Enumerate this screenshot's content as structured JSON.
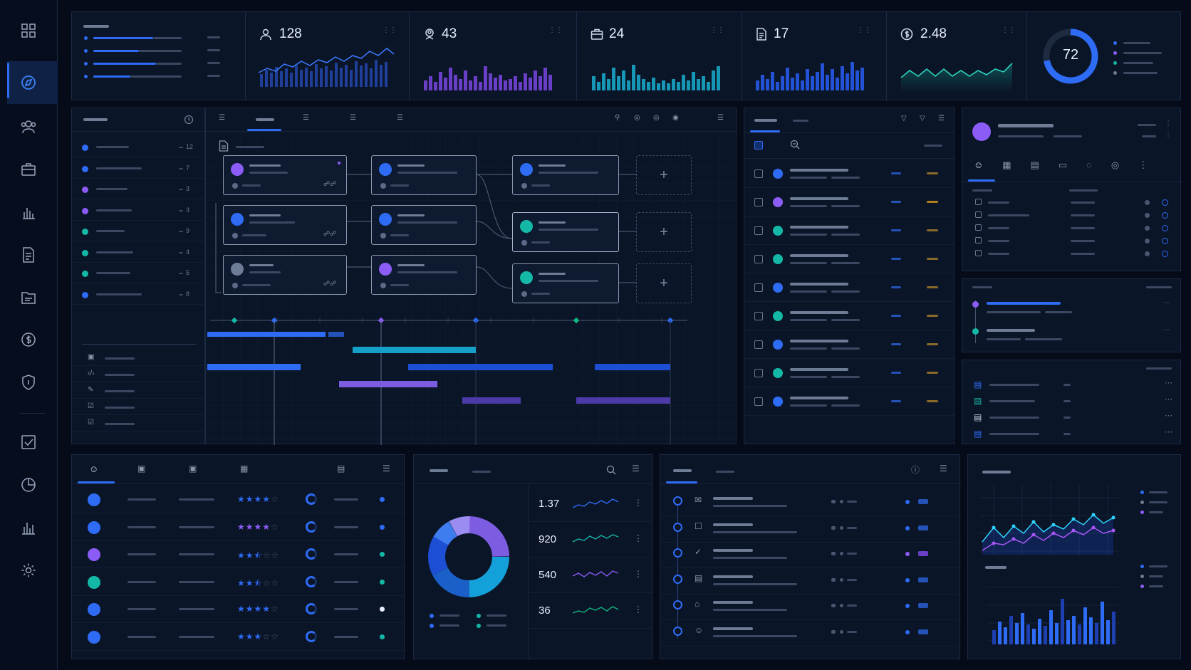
{
  "sidebar": {
    "icons": [
      "grid-icon",
      "compass-icon",
      "users-icon",
      "briefcase-icon",
      "bar-chart-icon",
      "document-icon",
      "folder-icon",
      "dollar-icon",
      "shield-icon",
      "checkbox-icon",
      "pie-chart-icon",
      "analytics-icon",
      "gear-icon"
    ],
    "active": "compass-icon"
  },
  "kpis": [
    {
      "icon": "user-icon",
      "value": "128"
    },
    {
      "icon": "user-badge-icon",
      "value": "43"
    },
    {
      "icon": "briefcase-icon",
      "value": "24"
    },
    {
      "icon": "document-icon",
      "value": "17"
    },
    {
      "icon": "dollar-icon",
      "value": "2.48"
    }
  ],
  "gauge": {
    "value": "72",
    "fraction": 0.72
  },
  "left_list": {
    "counts": [
      "12",
      "7",
      "3",
      "3",
      "9",
      "4",
      "5",
      "8"
    ],
    "dot_colors": [
      "#2e6cf6",
      "#2e6cf6",
      "#8b5cf6",
      "#8b5cf6",
      "#14b8a6",
      "#14b8a6",
      "#14b8a6",
      "#2e6cf6"
    ],
    "tools": [
      "briefcase-icon",
      "code-icon",
      "pen-icon",
      "checkbox-icon",
      "checkbox-icon"
    ]
  },
  "workflow": {
    "add_symbol": "+"
  },
  "mini_stats": [
    {
      "value": "1.37",
      "color": "#2e6cf6"
    },
    {
      "value": "920",
      "color": "#14b8a6"
    },
    {
      "value": "540",
      "color": "#8b5cf6"
    },
    {
      "value": "36",
      "color": "#10b981"
    }
  ],
  "ratings": [
    4,
    4,
    2.5,
    2.5,
    4,
    3
  ],
  "rating_status_colors": [
    "#2e6cf6",
    "#2e6cf6",
    "#14b8a6",
    "#14b8a6",
    "#e8eefb",
    "#14b8a6"
  ],
  "rating_avatar_colors": [
    "#2e6cf6",
    "#2e6cf6",
    "#8b5cf6",
    "#14b8a6",
    "#2e6cf6",
    "#2e6cf6"
  ],
  "task_dot_colors": [
    "#2e6cf6",
    "#8b5cf6",
    "#14b8a6",
    "#14b8a6",
    "#2e6cf6",
    "#14b8a6",
    "#2e6cf6",
    "#14b8a6",
    "#2e6cf6"
  ],
  "colors": {
    "accent": "#2e6cf6",
    "violet": "#8b5cf6",
    "teal": "#14b8a6",
    "bg": "#050b18",
    "panel": "#0b1528"
  }
}
